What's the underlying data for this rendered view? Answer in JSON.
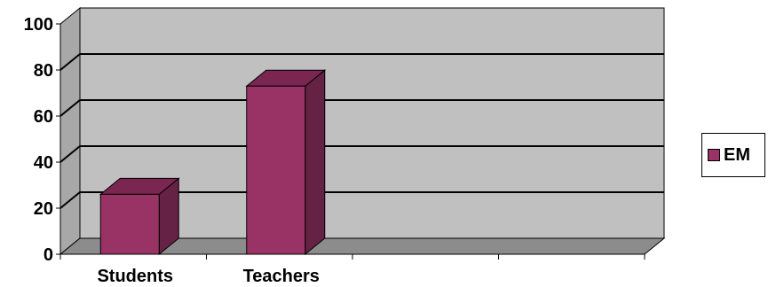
{
  "chart_data": {
    "type": "bar",
    "categories": [
      "Students",
      "Teachers"
    ],
    "series": [
      {
        "name": "EM",
        "values": [
          26,
          73
        ],
        "color": "#993366"
      }
    ],
    "ylim": [
      0,
      100
    ],
    "yticks": [
      "0",
      "20",
      "40",
      "60",
      "80",
      "100"
    ],
    "grid": true,
    "legend_position": "right",
    "style": "3d-column",
    "colors": {
      "plot_wall": "#c0c0c0",
      "bar_front": "#993366",
      "bar_top": "#7a2651",
      "bar_side": "#662244",
      "grid": "#000000"
    }
  }
}
